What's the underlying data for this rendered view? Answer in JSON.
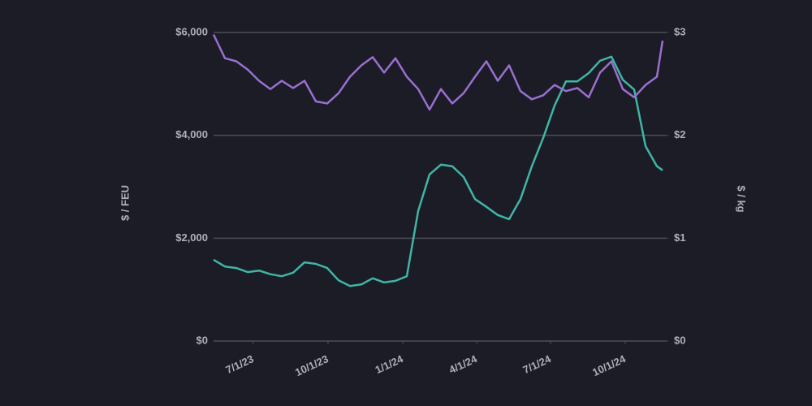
{
  "chart_data": {
    "type": "line",
    "y_label": "$ / FEU",
    "y2_label": "$ / kg",
    "x": [
      "5/13/23",
      "5/27/23",
      "6/10/23",
      "6/24/23",
      "7/8/23",
      "7/22/23",
      "8/5/23",
      "8/19/23",
      "9/2/23",
      "9/16/23",
      "9/30/23",
      "10/14/23",
      "10/28/23",
      "11/11/23",
      "11/25/23",
      "12/9/23",
      "12/23/23",
      "1/6/24",
      "1/20/24",
      "2/3/24",
      "2/17/24",
      "3/2/24",
      "3/16/24",
      "3/30/24",
      "4/13/24",
      "4/27/24",
      "5/11/24",
      "5/25/24",
      "6/8/24",
      "6/22/24",
      "7/6/24",
      "7/20/24",
      "8/3/24",
      "8/17/24",
      "8/31/24",
      "9/14/24",
      "9/28/24",
      "10/12/24",
      "10/26/24",
      "11/9/24",
      "11/16/24"
    ],
    "xlim": [
      "5/13/23",
      "11/20/24"
    ],
    "xticks": [
      "7/1/23",
      "10/1/23",
      "1/1/24",
      "4/1/24",
      "7/1/24",
      "10/1/24"
    ],
    "ylim": [
      0,
      6000
    ],
    "yticks": [
      {
        "value": 0,
        "label": "$0"
      },
      {
        "value": 2000,
        "label": "$2,000"
      },
      {
        "value": 4000,
        "label": "$4,000"
      },
      {
        "value": 6000,
        "label": "$6,000"
      }
    ],
    "y2lim": [
      0,
      3
    ],
    "y2ticks": [
      {
        "value": 0,
        "label": "$0"
      },
      {
        "value": 1,
        "label": "$1"
      },
      {
        "value": 2,
        "label": "$2"
      },
      {
        "value": 3,
        "label": "$3"
      }
    ],
    "grid": true,
    "series": [
      {
        "color": "#3fb5a6",
        "axis": "y",
        "values": [
          1580,
          1450,
          1420,
          1340,
          1370,
          1300,
          1260,
          1330,
          1530,
          1500,
          1420,
          1180,
          1070,
          1100,
          1220,
          1140,
          1170,
          1260,
          2530,
          3240,
          3430,
          3400,
          3190,
          2760,
          2610,
          2450,
          2370,
          2760,
          3400,
          3950,
          4580,
          5050,
          5050,
          5210,
          5450,
          5530,
          5080,
          4890,
          3790,
          3400,
          3320
        ]
      },
      {
        "color": "#9a6fcf",
        "axis": "y2",
        "values": [
          2.98,
          2.75,
          2.72,
          2.64,
          2.53,
          2.45,
          2.53,
          2.46,
          2.53,
          2.33,
          2.31,
          2.41,
          2.57,
          2.68,
          2.76,
          2.61,
          2.75,
          2.57,
          2.45,
          2.25,
          2.45,
          2.31,
          2.41,
          2.57,
          2.72,
          2.53,
          2.68,
          2.43,
          2.35,
          2.39,
          2.49,
          2.43,
          2.46,
          2.37,
          2.61,
          2.72,
          2.45,
          2.37,
          2.49,
          2.57,
          2.92
        ]
      }
    ]
  }
}
